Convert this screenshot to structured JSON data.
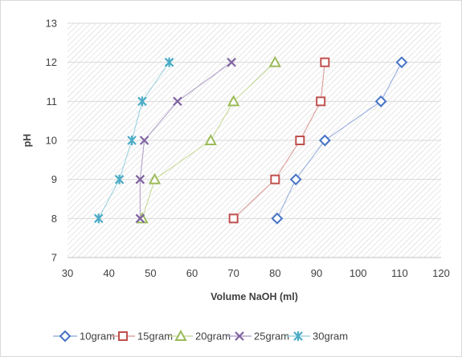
{
  "chart_data": {
    "type": "scatter",
    "title": "",
    "xlabel": "Volume NaOH (ml)",
    "ylabel": "pH",
    "xlim": [
      30,
      120
    ],
    "ylim": [
      7,
      13
    ],
    "x_ticks": [
      "30",
      "40",
      "50",
      "60",
      "70",
      "80",
      "90",
      "100",
      "110",
      "120"
    ],
    "y_ticks": [
      "7",
      "8",
      "9",
      "10",
      "11",
      "12",
      "13"
    ],
    "grid": "hatched plot area with horizontal gridlines",
    "legend_position": "bottom",
    "series": [
      {
        "name": "10gram",
        "marker": "diamond",
        "color": "#4472c4",
        "line_color": "#9db3e0",
        "points": [
          [
            80.5,
            8
          ],
          [
            85,
            9
          ],
          [
            92,
            10
          ],
          [
            105.5,
            11
          ],
          [
            110.5,
            12
          ]
        ]
      },
      {
        "name": "15gram",
        "marker": "square",
        "color": "#c0504d",
        "line_color": "#dea3a1",
        "points": [
          [
            70,
            8
          ],
          [
            80,
            9
          ],
          [
            86,
            10
          ],
          [
            91,
            11
          ],
          [
            92,
            12
          ]
        ]
      },
      {
        "name": "20gram",
        "marker": "triangle",
        "color": "#9bbb59",
        "line_color": "#cadc9f",
        "points": [
          [
            48,
            8
          ],
          [
            51,
            9
          ],
          [
            64.5,
            10
          ],
          [
            70,
            11
          ],
          [
            80,
            12
          ]
        ]
      },
      {
        "name": "25gram",
        "marker": "x",
        "color": "#8064a2",
        "line_color": "#b7a6cc",
        "points": [
          [
            47.5,
            8
          ],
          [
            47.5,
            9
          ],
          [
            48.5,
            10
          ],
          [
            56.5,
            11
          ],
          [
            69.5,
            12
          ]
        ]
      },
      {
        "name": "30gram",
        "marker": "asterisk",
        "color": "#4bacc6",
        "line_color": "#a3d4e2",
        "points": [
          [
            37.5,
            8
          ],
          [
            42.5,
            9
          ],
          [
            45.5,
            10
          ],
          [
            48,
            11
          ],
          [
            54.5,
            12
          ]
        ]
      }
    ]
  }
}
